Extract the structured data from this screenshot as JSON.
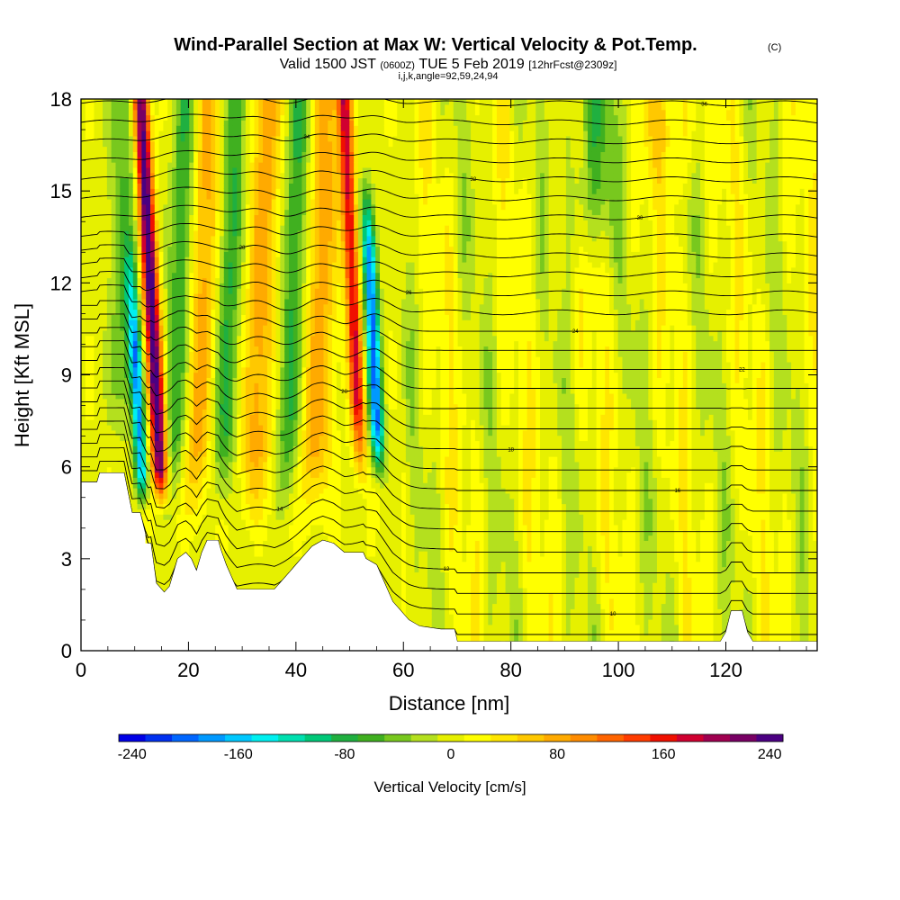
{
  "header": {
    "title_main": "Wind-Parallel Section at Max W: Vertical Velocity & Pot.Temp.",
    "title_mark": "(C)",
    "valid_prefix": "Valid 1500 JST",
    "valid_utc": "(0600Z)",
    "valid_date": "TUE 5 Feb 2019",
    "valid_fcst": "[12hrFcst@2309z]",
    "grid_info": "i,j,k,angle=92,59,24,94"
  },
  "chart_data": {
    "type": "heatmap",
    "title": "Wind-Parallel Section at Max W: Vertical Velocity & Pot.Temp.",
    "xlabel": "Distance [nm]",
    "ylabel": "Height [Kft MSL]",
    "xlim": [
      0,
      137
    ],
    "ylim": [
      0,
      18
    ],
    "x_ticks": [
      0,
      20,
      40,
      60,
      80,
      100,
      120
    ],
    "y_ticks": [
      0,
      3,
      6,
      9,
      12,
      15,
      18
    ],
    "grid": false,
    "colorbar": {
      "title": "Vertical Velocity [cm/s]",
      "ticks": [
        -240,
        -160,
        -80,
        0,
        80,
        160,
        240
      ],
      "bin_size": 20,
      "colors": [
        "#0000e6",
        "#0030f0",
        "#0066ff",
        "#0099ff",
        "#00c8ff",
        "#00f0f0",
        "#00e0b0",
        "#00c878",
        "#20b040",
        "#40b020",
        "#78c81e",
        "#b4e01e",
        "#e6f000",
        "#ffff00",
        "#ffe600",
        "#ffc800",
        "#ffaa00",
        "#ff8c00",
        "#ff6400",
        "#ff3c00",
        "#f01000",
        "#d00030",
        "#a00050",
        "#780064",
        "#4b0082"
      ]
    },
    "vertical_velocity_features": [
      {
        "type": "updraft",
        "x": 13,
        "peak": 250
      },
      {
        "type": "downdraft",
        "x": 10,
        "peak": -170
      },
      {
        "type": "updraft",
        "x": 53,
        "peak": 170
      },
      {
        "type": "downdraft",
        "x": 56,
        "peak": -200
      },
      {
        "type": "updraft",
        "x": 22,
        "peak": 80
      },
      {
        "type": "updraft",
        "x": 33,
        "peak": 80
      }
    ],
    "terrain_kft": [
      [
        0,
        5.5
      ],
      [
        3,
        5.5
      ],
      [
        3.5,
        5.8
      ],
      [
        8,
        5.8
      ],
      [
        9.5,
        4.5
      ],
      [
        11,
        4.5
      ],
      [
        12,
        3.8
      ],
      [
        12,
        3.5
      ],
      [
        13,
        3.5
      ],
      [
        14,
        2.2
      ],
      [
        15.5,
        1.9
      ],
      [
        16.5,
        2.1
      ],
      [
        18,
        3.0
      ],
      [
        19.5,
        3.2
      ],
      [
        20.5,
        3.0
      ],
      [
        21.5,
        2.6
      ],
      [
        22.5,
        3.2
      ],
      [
        23.5,
        3.6
      ],
      [
        25.5,
        3.6
      ],
      [
        26,
        3.3
      ],
      [
        27,
        2.8
      ],
      [
        29,
        2.0
      ],
      [
        36,
        2.0
      ],
      [
        37,
        2.2
      ],
      [
        39,
        2.6
      ],
      [
        41,
        3.0
      ],
      [
        43,
        3.4
      ],
      [
        45,
        3.6
      ],
      [
        47,
        3.5
      ],
      [
        49,
        3.2
      ],
      [
        52.5,
        3.2
      ],
      [
        53,
        3.0
      ],
      [
        55,
        2.8
      ],
      [
        57,
        2.0
      ],
      [
        58,
        1.6
      ],
      [
        59,
        1.4
      ],
      [
        61,
        1.0
      ],
      [
        63,
        0.8
      ],
      [
        67,
        0.7
      ],
      [
        69.5,
        0.7
      ],
      [
        70,
        0.3
      ],
      [
        119,
        0.3
      ],
      [
        120,
        0.6
      ],
      [
        121,
        1.3
      ],
      [
        123,
        1.3
      ],
      [
        124,
        0.6
      ],
      [
        125,
        0.3
      ],
      [
        137,
        0.3
      ]
    ],
    "isentropes_K": [
      273,
      276,
      279,
      282,
      285,
      288,
      291,
      294,
      297,
      300,
      303,
      306,
      309,
      312,
      315,
      318,
      321,
      324,
      327,
      330,
      333,
      336,
      339,
      342,
      345,
      348,
      351,
      354,
      357,
      360
    ],
    "isentrope_labels": [
      "8",
      "10",
      "12",
      "14",
      "16",
      "18",
      "20",
      "22",
      "24",
      "26",
      "28",
      "30",
      "32",
      "34",
      "36",
      "38",
      "40"
    ]
  }
}
